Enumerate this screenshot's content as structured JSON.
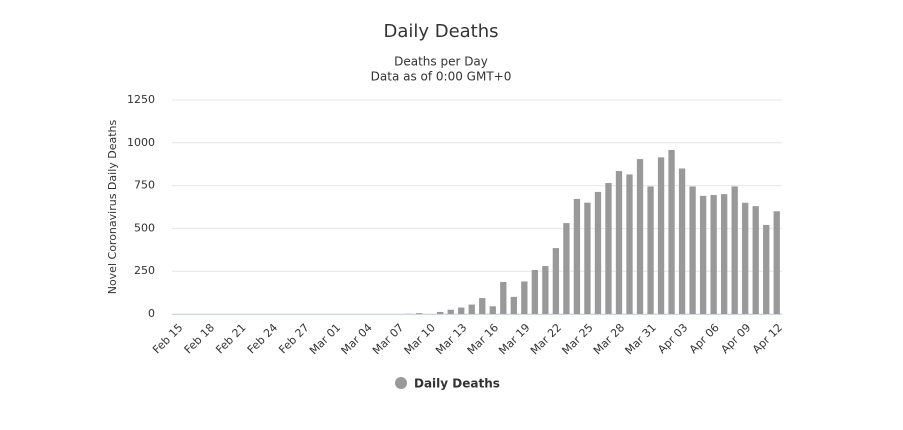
{
  "chart_data": {
    "type": "bar",
    "title": "Daily Deaths",
    "subtitle": [
      "Deaths per Day",
      "Data as of 0:00 GMT+0"
    ],
    "y_label": "Novel Coronavirus Daily Deaths",
    "categories": [
      "Feb 15",
      null,
      null,
      "Feb 18",
      null,
      null,
      "Feb 21",
      null,
      null,
      "Feb 24",
      null,
      null,
      "Feb 27",
      null,
      null,
      "Mar 01",
      null,
      null,
      "Mar 04",
      null,
      null,
      "Mar 07",
      null,
      null,
      "Mar 10",
      null,
      null,
      "Mar 13",
      null,
      null,
      "Mar 16",
      null,
      null,
      "Mar 19",
      null,
      null,
      "Mar 22",
      null,
      null,
      "Mar 25",
      null,
      null,
      "Mar 28",
      null,
      null,
      "Mar 31",
      null,
      null,
      "Apr 03",
      null,
      null,
      "Apr 06",
      null,
      null,
      "Apr 09",
      null,
      null,
      "Apr 12"
    ],
    "series": [
      {
        "name": "Daily Deaths",
        "color": "#999999",
        "values": [
          0,
          0,
          0,
          0,
          0,
          0,
          0,
          0,
          0,
          0,
          0,
          0,
          0,
          0,
          0,
          0,
          0,
          0,
          0,
          0,
          0,
          0,
          1,
          5,
          0,
          12,
          25,
          38,
          55,
          93,
          45,
          187,
          100,
          190,
          257,
          280,
          385,
          531,
          672,
          650,
          713,
          765,
          835,
          815,
          905,
          745,
          915,
          958,
          850,
          745,
          690,
          695,
          700,
          745,
          650,
          630,
          520,
          600
        ]
      }
    ],
    "ylim": [
      0,
      1250
    ],
    "yticks": [
      0,
      250,
      500,
      750,
      1000,
      1250
    ],
    "grid": true,
    "legend": "bottom"
  }
}
